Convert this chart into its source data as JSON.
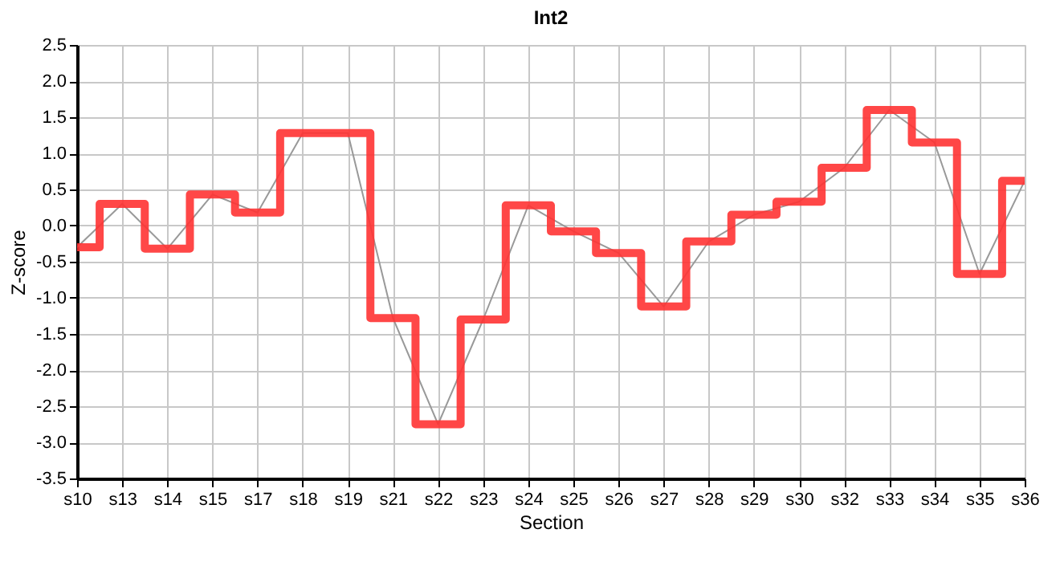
{
  "chart_data": {
    "type": "line",
    "title": "Int2",
    "xlabel": "Section",
    "ylabel": "Z-score",
    "categories": [
      "s10",
      "s13",
      "s14",
      "s15",
      "s17",
      "s18",
      "s19",
      "s21",
      "s22",
      "s23",
      "s24",
      "s25",
      "s26",
      "s27",
      "s28",
      "s29",
      "s30",
      "s32",
      "s33",
      "s34",
      "s35",
      "s36"
    ],
    "series": [
      {
        "color": "#999999",
        "values": [
          -0.3,
          0.3,
          -0.32,
          0.43,
          0.18,
          1.28,
          1.28,
          -1.28,
          -2.75,
          -1.3,
          0.28,
          -0.08,
          -0.38,
          -1.12,
          -0.22,
          0.15,
          0.33,
          0.8,
          1.6,
          1.15,
          -0.67,
          0.62
        ]
      },
      {
        "type": "step",
        "color": "#ff3333",
        "values": [
          -0.3,
          0.3,
          -0.32,
          0.43,
          0.18,
          1.28,
          1.28,
          -1.28,
          -2.75,
          -1.3,
          0.28,
          -0.08,
          -0.38,
          -1.12,
          -0.22,
          0.15,
          0.33,
          0.8,
          1.6,
          1.15,
          -0.67,
          0.62
        ]
      }
    ],
    "ylim": [
      -3.5,
      2.5
    ],
    "yticks": [
      -3.5,
      {
        "value": -3,
        "label": "-3.0"
      },
      -2.5,
      {
        "value": -2,
        "label": "-2.0"
      },
      -1.5,
      {
        "value": -1,
        "label": "-1.0"
      },
      -0.5,
      {
        "value": 0,
        "label": "0.0"
      },
      0.5,
      {
        "value": 1,
        "label": "1.0"
      },
      1.5,
      {
        "value": 2,
        "label": "2.0"
      },
      2.5
    ],
    "grid": true,
    "marker": "none",
    "line_style": "solid"
  }
}
